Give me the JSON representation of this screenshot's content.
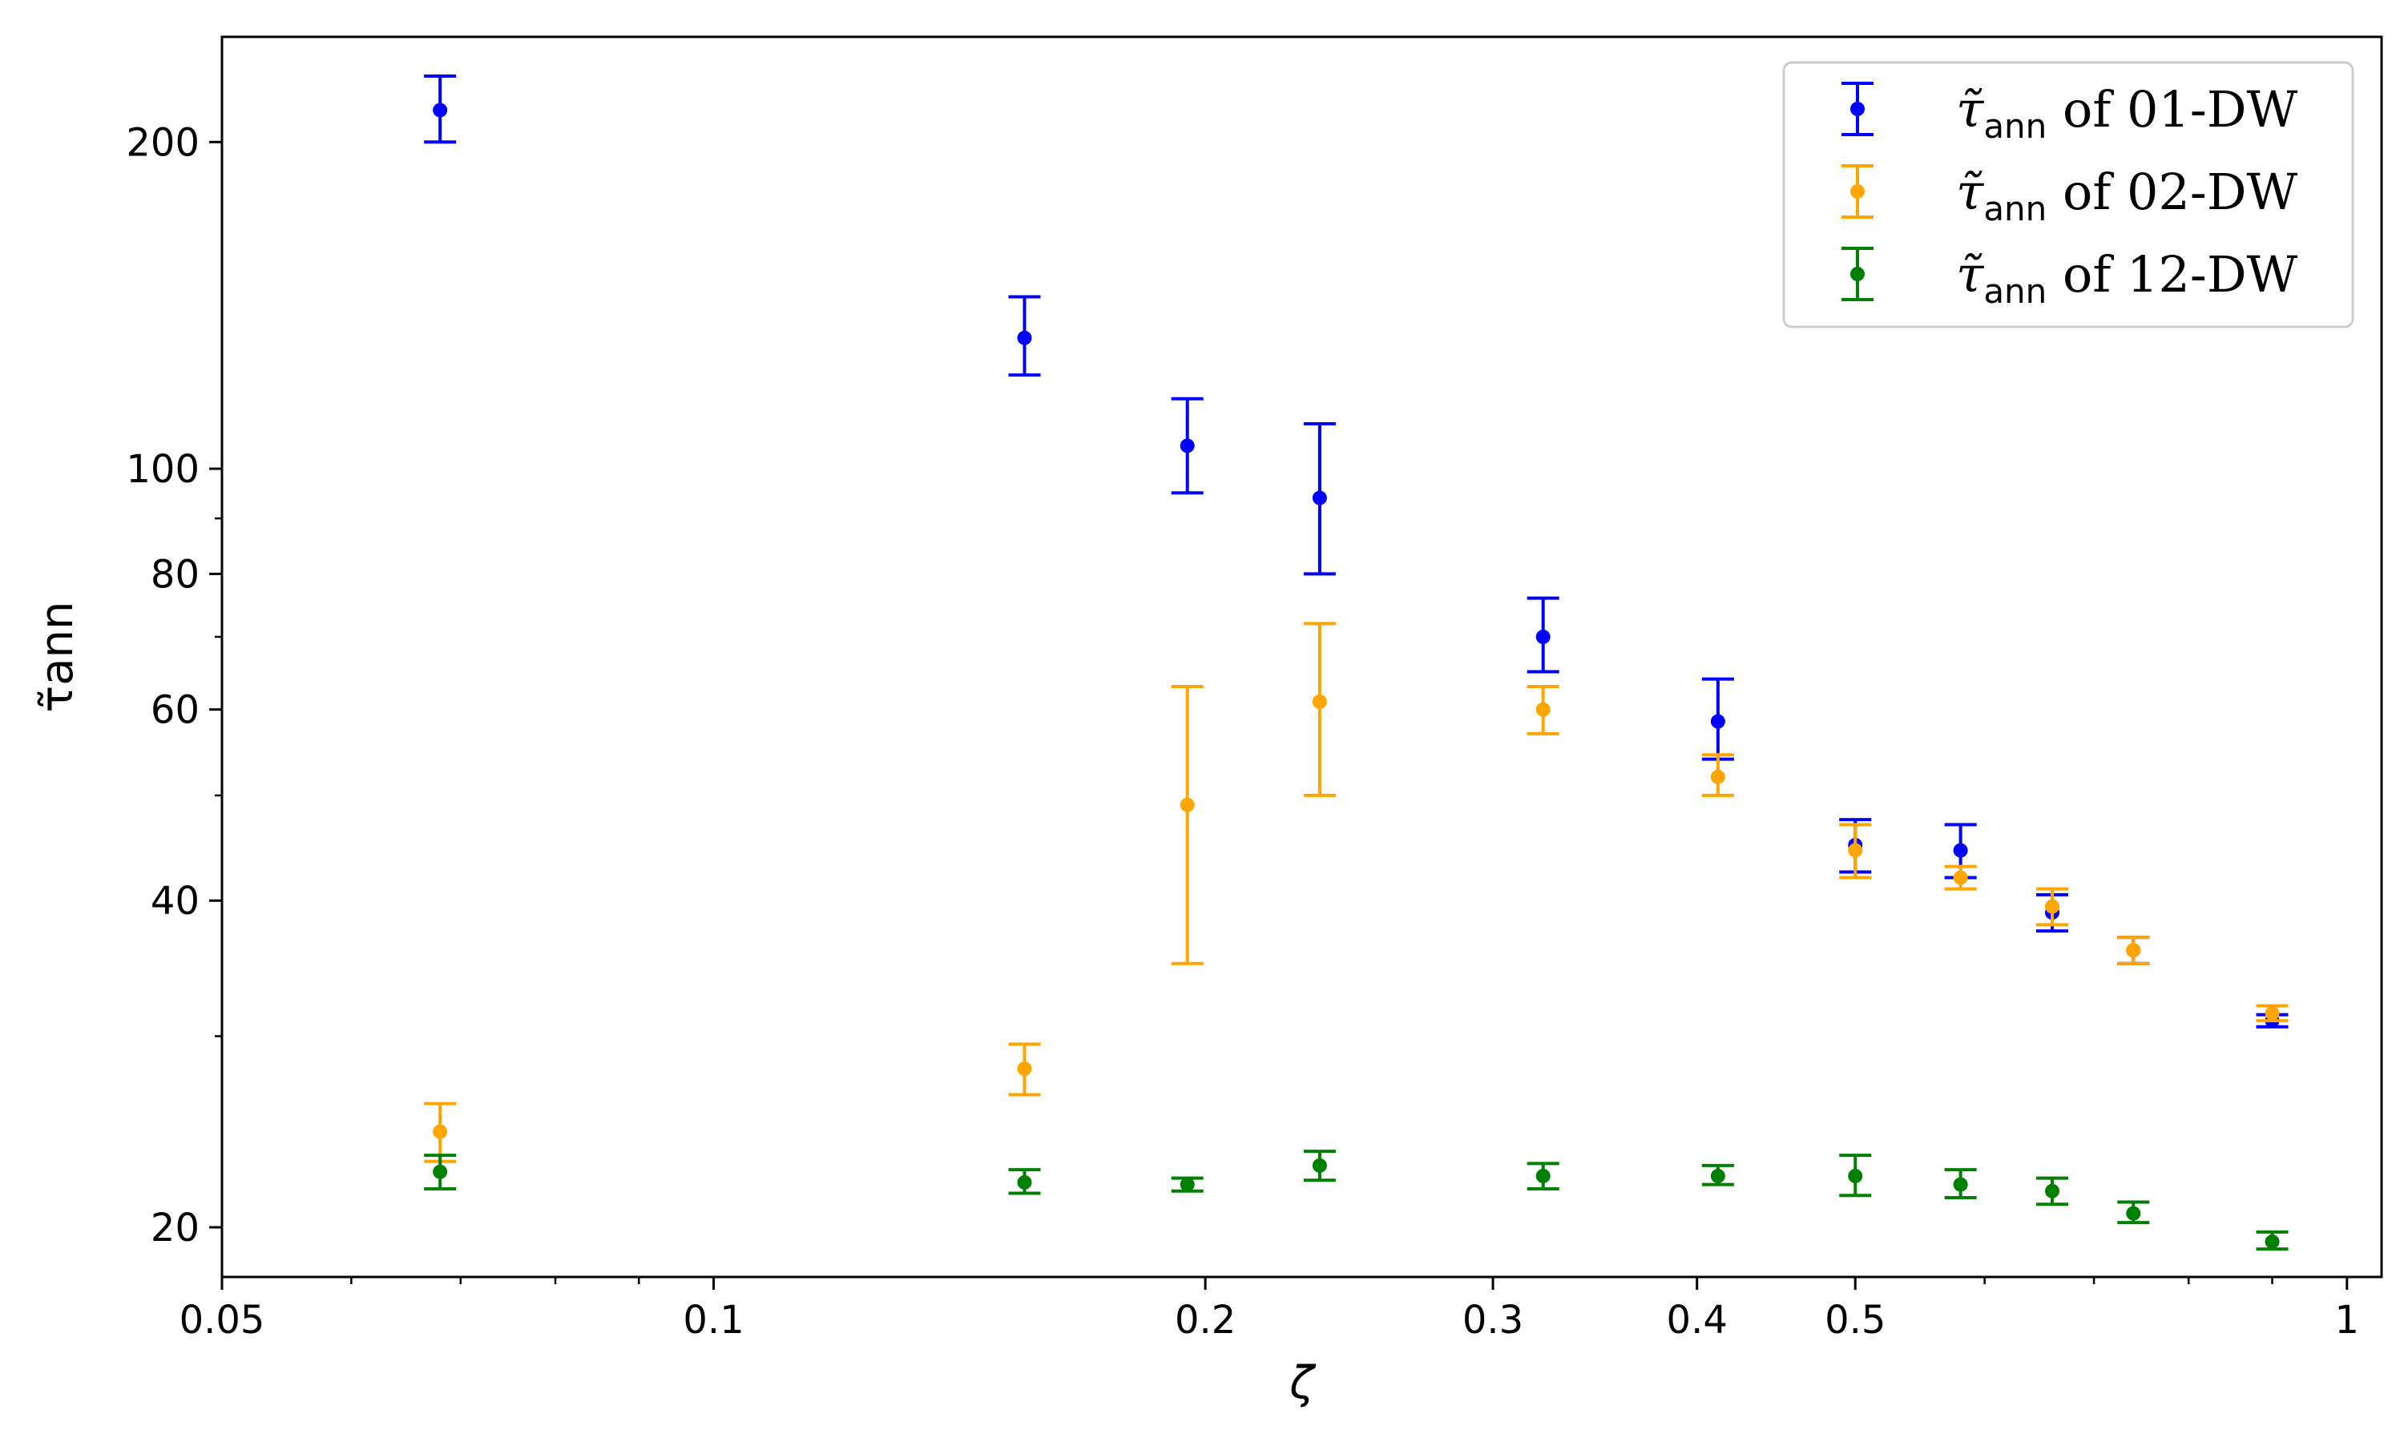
{
  "chart_data": {
    "type": "scatter",
    "x_scale": "log",
    "y_scale": "log",
    "xlim": [
      0.05,
      1.05
    ],
    "ylim": [
      18,
      250
    ],
    "xlabel": "ζ",
    "ylabel": "τ̃ann",
    "x_ticks": [
      0.05,
      0.1,
      0.2,
      0.3,
      0.4,
      0.5,
      1
    ],
    "x_tick_labels": [
      "0.05",
      "0.1",
      "0.2",
      "0.3",
      "0.4",
      "0.5",
      "1"
    ],
    "y_ticks": [
      20,
      40,
      60,
      80,
      100,
      200
    ],
    "y_tick_labels": [
      "20",
      "40",
      "60",
      "80",
      "100",
      "200"
    ],
    "grid": false,
    "legend_position": "top-right",
    "series": [
      {
        "name": "τ̃ann of 01-DW",
        "legend_parts": {
          "symbol": "τ̃",
          "subscript": "ann",
          "suffix": " of 01-DW"
        },
        "color": "#0000ff",
        "points": [
          {
            "x": 0.068,
            "y": 214,
            "ylo": 200,
            "yhi": 230
          },
          {
            "x": 0.155,
            "y": 132,
            "ylo": 122,
            "yhi": 144
          },
          {
            "x": 0.195,
            "y": 105,
            "ylo": 95,
            "yhi": 116
          },
          {
            "x": 0.235,
            "y": 94,
            "ylo": 80,
            "yhi": 110
          },
          {
            "x": 0.322,
            "y": 70,
            "ylo": 65,
            "yhi": 76
          },
          {
            "x": 0.412,
            "y": 58.5,
            "ylo": 54,
            "yhi": 64
          },
          {
            "x": 0.5,
            "y": 45,
            "ylo": 42.5,
            "yhi": 47.5
          },
          {
            "x": 0.58,
            "y": 44.5,
            "ylo": 42,
            "yhi": 47
          },
          {
            "x": 0.66,
            "y": 39,
            "ylo": 37.5,
            "yhi": 40.5
          },
          {
            "x": 0.74,
            "y": 36,
            "ylo": 35,
            "yhi": 37
          },
          {
            "x": 0.9,
            "y": 31,
            "ylo": 30.6,
            "yhi": 31.4
          }
        ]
      },
      {
        "name": "τ̃ann of 02-DW",
        "legend_parts": {
          "symbol": "τ̃",
          "subscript": "ann",
          "suffix": " of 02-DW"
        },
        "color": "#ffa500",
        "points": [
          {
            "x": 0.068,
            "y": 24.5,
            "ylo": 23,
            "yhi": 26
          },
          {
            "x": 0.155,
            "y": 28,
            "ylo": 26.5,
            "yhi": 29.5
          },
          {
            "x": 0.195,
            "y": 49,
            "ylo": 35,
            "yhi": 63
          },
          {
            "x": 0.235,
            "y": 61,
            "ylo": 50,
            "yhi": 72
          },
          {
            "x": 0.322,
            "y": 60,
            "ylo": 57,
            "yhi": 63
          },
          {
            "x": 0.412,
            "y": 52,
            "ylo": 50,
            "yhi": 54.5
          },
          {
            "x": 0.5,
            "y": 44.5,
            "ylo": 42,
            "yhi": 47
          },
          {
            "x": 0.58,
            "y": 42,
            "ylo": 41,
            "yhi": 43
          },
          {
            "x": 0.66,
            "y": 39.5,
            "ylo": 38,
            "yhi": 41
          },
          {
            "x": 0.74,
            "y": 36,
            "ylo": 35,
            "yhi": 37
          },
          {
            "x": 0.9,
            "y": 31.5,
            "ylo": 31,
            "yhi": 32
          }
        ]
      },
      {
        "name": "τ̃ann of 12-DW",
        "legend_parts": {
          "symbol": "τ̃",
          "subscript": "ann",
          "suffix": " of 12-DW"
        },
        "color": "#008000",
        "points": [
          {
            "x": 0.068,
            "y": 22.5,
            "ylo": 21.7,
            "yhi": 23.3
          },
          {
            "x": 0.155,
            "y": 22,
            "ylo": 21.5,
            "yhi": 22.6
          },
          {
            "x": 0.195,
            "y": 21.9,
            "ylo": 21.6,
            "yhi": 22.2
          },
          {
            "x": 0.235,
            "y": 22.8,
            "ylo": 22.1,
            "yhi": 23.5
          },
          {
            "x": 0.322,
            "y": 22.3,
            "ylo": 21.7,
            "yhi": 22.9
          },
          {
            "x": 0.412,
            "y": 22.3,
            "ylo": 21.9,
            "yhi": 22.8
          },
          {
            "x": 0.5,
            "y": 22.3,
            "ylo": 21.4,
            "yhi": 23.3
          },
          {
            "x": 0.58,
            "y": 21.9,
            "ylo": 21.3,
            "yhi": 22.6
          },
          {
            "x": 0.66,
            "y": 21.6,
            "ylo": 21,
            "yhi": 22.2
          },
          {
            "x": 0.74,
            "y": 20.6,
            "ylo": 20.2,
            "yhi": 21.1
          },
          {
            "x": 0.9,
            "y": 19.4,
            "ylo": 19.1,
            "yhi": 19.8
          }
        ]
      }
    ]
  }
}
